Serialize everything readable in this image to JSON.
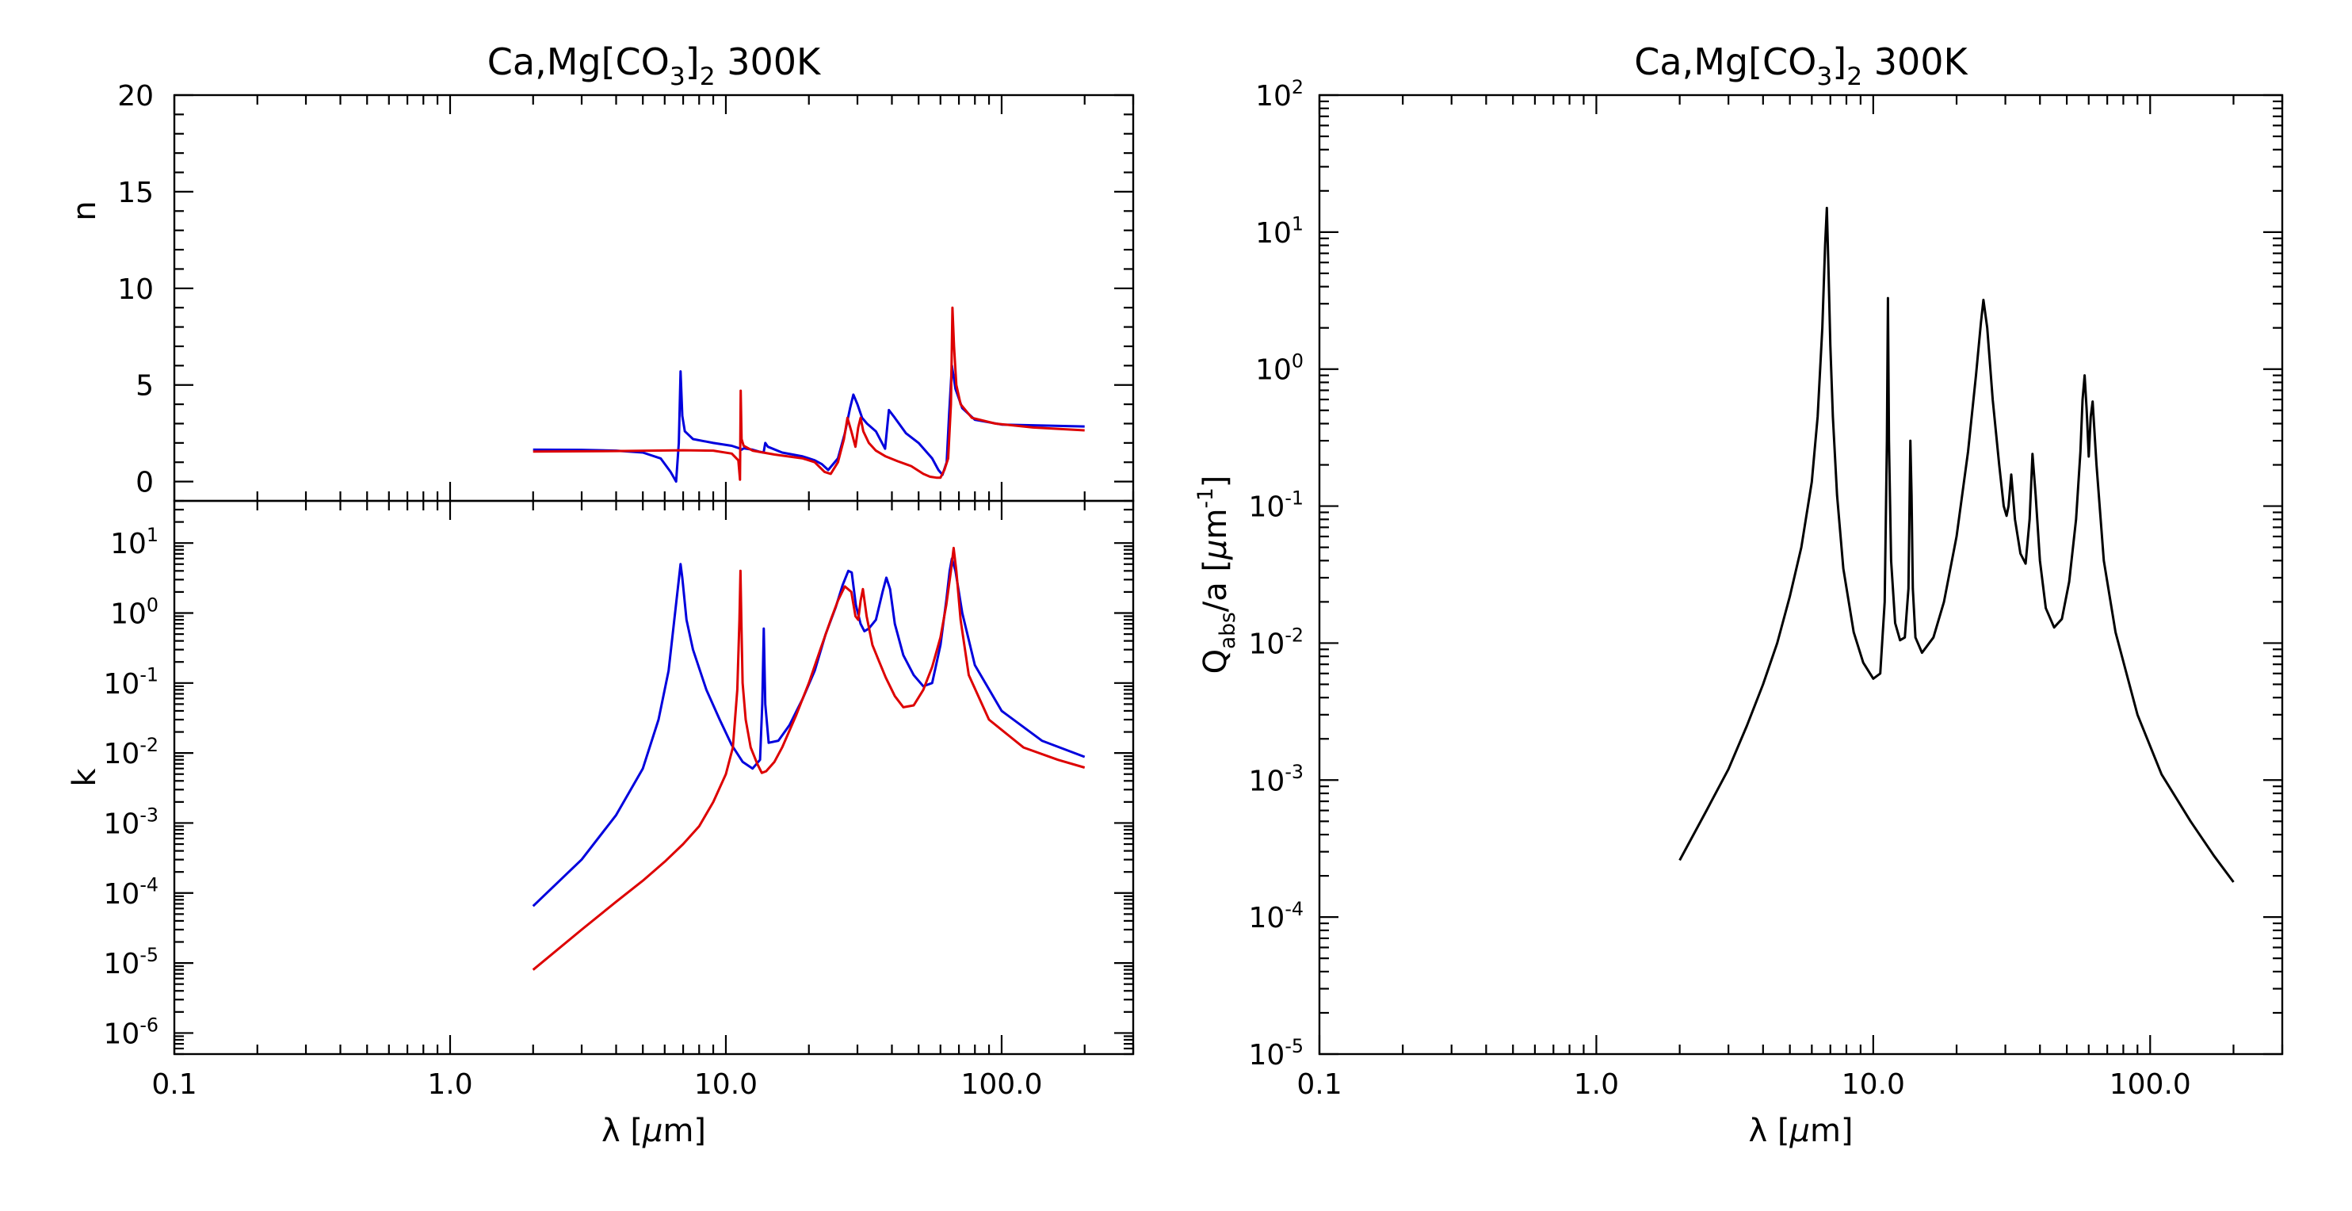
{
  "chart_data": [
    {
      "id": "n_panel",
      "type": "line",
      "title": "Ca,Mg[CO3]2 300K",
      "xlabel": "",
      "ylabel": "n",
      "xscale": "log",
      "xlim": [
        0.1,
        300
      ],
      "ylim": [
        -1,
        20
      ],
      "x_ticks": [
        "0.1",
        "1.0",
        "10.0",
        "100.0"
      ],
      "x_tick_labels_shown": false,
      "y_ticks": [
        "0",
        "5",
        "10",
        "15",
        "20"
      ],
      "series": [
        {
          "color": "#0000dd",
          "x": [
            2,
            3,
            4,
            5,
            5.8,
            6.3,
            6.6,
            6.75,
            6.85,
            6.95,
            7.1,
            7.6,
            9,
            10.5,
            11.2,
            11.4,
            11.6,
            12.5,
            13.2,
            13.7,
            13.9,
            14.2,
            16,
            19,
            21,
            22.3,
            23.5,
            25.5,
            27,
            28.2,
            29,
            30,
            31.2,
            32.5,
            35,
            37.8,
            39,
            41,
            45,
            50,
            56,
            59,
            61,
            63.2,
            64.5,
            66,
            68,
            72,
            80,
            100,
            140,
            200
          ],
          "y": [
            1.65,
            1.64,
            1.6,
            1.5,
            1.2,
            0.5,
            0.0,
            2.0,
            5.7,
            3.4,
            2.6,
            2.2,
            2.0,
            1.85,
            1.72,
            1.65,
            1.72,
            1.65,
            1.55,
            1.5,
            2.0,
            1.8,
            1.5,
            1.3,
            1.1,
            0.9,
            0.6,
            1.2,
            2.5,
            3.8,
            4.5,
            4.0,
            3.3,
            3.0,
            2.6,
            1.7,
            3.7,
            3.3,
            2.5,
            2.0,
            1.2,
            0.6,
            0.35,
            1.0,
            3.5,
            6.0,
            4.8,
            3.8,
            3.2,
            2.95,
            2.9,
            2.85
          ]
        },
        {
          "color": "#dd0000",
          "x": [
            2,
            4,
            7,
            9,
            10.5,
            11.1,
            11.25,
            11.32,
            11.4,
            11.6,
            12.5,
            15,
            19,
            21,
            22.8,
            24,
            25.5,
            26.8,
            27.6,
            28.5,
            29.5,
            30.2,
            30.8,
            31.5,
            33,
            35,
            38,
            42,
            47,
            52,
            55,
            58,
            60,
            62,
            64,
            65.5,
            66.3,
            67.2,
            68.5,
            71,
            78,
            95,
            130,
            200
          ],
          "y": [
            1.55,
            1.58,
            1.62,
            1.6,
            1.45,
            1.1,
            0.1,
            4.7,
            2.2,
            1.85,
            1.6,
            1.4,
            1.2,
            1.0,
            0.5,
            0.4,
            1.0,
            2.2,
            3.3,
            2.6,
            1.8,
            2.8,
            3.3,
            2.6,
            2.0,
            1.6,
            1.3,
            1.05,
            0.8,
            0.4,
            0.25,
            0.2,
            0.2,
            0.6,
            1.2,
            4.0,
            9.0,
            7.0,
            5.0,
            4.0,
            3.3,
            3.0,
            2.8,
            2.65
          ]
        }
      ]
    },
    {
      "id": "k_panel",
      "type": "line",
      "title": "",
      "xlabel": "λ [μm]",
      "ylabel": "k",
      "xscale": "log",
      "yscale": "log",
      "xlim": [
        0.1,
        300
      ],
      "ylim": [
        5e-07,
        40
      ],
      "x_ticks": [
        "0.1",
        "1.0",
        "10.0",
        "100.0"
      ],
      "y_ticks": [
        "10-6",
        "10-5",
        "10-4",
        "10-3",
        "10-2",
        "10-1",
        "100",
        "101"
      ],
      "series": [
        {
          "color": "#0000dd",
          "x": [
            2,
            3,
            4,
            5,
            5.7,
            6.2,
            6.5,
            6.75,
            6.85,
            6.95,
            7.2,
            7.6,
            8.5,
            9.5,
            10.5,
            11.5,
            12.5,
            13.3,
            13.55,
            13.72,
            13.9,
            14.3,
            15.5,
            17,
            19,
            21,
            23,
            25,
            26.5,
            27.8,
            28.6,
            29.6,
            30.8,
            31.8,
            33,
            35,
            37,
            38.2,
            39.4,
            41,
            44,
            48,
            52,
            56,
            60,
            63,
            64.8,
            66,
            68,
            72,
            80,
            100,
            140,
            200
          ],
          "y": [
            6.5e-05,
            0.0003,
            0.0013,
            0.006,
            0.03,
            0.15,
            0.8,
            3.0,
            5.0,
            3.2,
            0.8,
            0.3,
            0.08,
            0.03,
            0.013,
            0.0075,
            0.006,
            0.008,
            0.05,
            0.6,
            0.05,
            0.014,
            0.015,
            0.025,
            0.06,
            0.15,
            0.5,
            1.2,
            2.5,
            4.0,
            3.8,
            1.3,
            0.7,
            0.55,
            0.6,
            0.8,
            2.0,
            3.2,
            2.2,
            0.7,
            0.25,
            0.13,
            0.09,
            0.1,
            0.35,
            1.5,
            4.0,
            6.0,
            4.0,
            1.0,
            0.18,
            0.04,
            0.015,
            0.0088
          ]
        },
        {
          "color": "#dd0000",
          "x": [
            2,
            3,
            4,
            5,
            6,
            7,
            8,
            9,
            10,
            10.6,
            11.0,
            11.2,
            11.3,
            11.38,
            11.5,
            11.8,
            12.3,
            13.0,
            13.5,
            14,
            15,
            16,
            18,
            20,
            22,
            24,
            25.5,
            27,
            28.5,
            29.5,
            30.2,
            30.8,
            31.4,
            32.4,
            34,
            36,
            38,
            41,
            44,
            48,
            52,
            56,
            60,
            63,
            65.5,
            67,
            68.5,
            71,
            76,
            90,
            120,
            160,
            200
          ],
          "y": [
            8e-06,
            3e-05,
            7.5e-05,
            0.00015,
            0.00028,
            0.0005,
            0.0009,
            0.002,
            0.005,
            0.012,
            0.08,
            0.8,
            4.0,
            0.8,
            0.1,
            0.03,
            0.012,
            0.007,
            0.0052,
            0.0055,
            0.0075,
            0.012,
            0.035,
            0.1,
            0.3,
            0.8,
            1.5,
            2.4,
            2.0,
            0.9,
            0.8,
            1.5,
            2.2,
            0.9,
            0.35,
            0.2,
            0.12,
            0.065,
            0.045,
            0.048,
            0.08,
            0.17,
            0.45,
            1.3,
            4.0,
            8.5,
            4.0,
            0.8,
            0.13,
            0.03,
            0.012,
            0.008,
            0.0062
          ]
        }
      ]
    },
    {
      "id": "q_panel",
      "type": "line",
      "title": "Ca,Mg[CO3]2 300K",
      "xlabel": "λ [μm]",
      "ylabel": "Qabs/a [μm-1]",
      "xscale": "log",
      "yscale": "log",
      "xlim": [
        0.1,
        300
      ],
      "ylim": [
        1e-05,
        100
      ],
      "x_ticks": [
        "0.1",
        "1.0",
        "10.0",
        "100.0"
      ],
      "y_ticks": [
        "10-5",
        "10-4",
        "10-3",
        "10-2",
        "10-1",
        "100",
        "101",
        "102"
      ],
      "series": [
        {
          "color": "#000000",
          "x": [
            2,
            2.5,
            3,
            3.5,
            4,
            4.5,
            5,
            5.5,
            6,
            6.3,
            6.55,
            6.7,
            6.8,
            6.9,
            7.0,
            7.15,
            7.4,
            7.8,
            8.5,
            9.2,
            10,
            10.6,
            11.0,
            11.2,
            11.3,
            11.4,
            11.6,
            12.0,
            12.5,
            13.0,
            13.4,
            13.62,
            13.75,
            13.9,
            14.2,
            15.0,
            16.5,
            18,
            20,
            22,
            23.5,
            24.5,
            25,
            25.8,
            27,
            28.5,
            29.6,
            30.3,
            30.8,
            31.5,
            32.5,
            34,
            35.5,
            36.7,
            37.6,
            38.6,
            40,
            42,
            45,
            48,
            51,
            54,
            56,
            57,
            58,
            59,
            60,
            61,
            62,
            64,
            68,
            75,
            90,
            110,
            140,
            170,
            200
          ],
          "y": [
            0.00026,
            0.0006,
            0.0012,
            0.0025,
            0.005,
            0.01,
            0.022,
            0.05,
            0.15,
            0.45,
            2.0,
            8.0,
            15.0,
            5.0,
            1.5,
            0.45,
            0.12,
            0.035,
            0.012,
            0.0072,
            0.0055,
            0.006,
            0.02,
            0.3,
            3.3,
            0.3,
            0.04,
            0.014,
            0.0105,
            0.011,
            0.025,
            0.3,
            0.12,
            0.025,
            0.011,
            0.0085,
            0.011,
            0.02,
            0.06,
            0.25,
            0.9,
            2.2,
            3.2,
            2.0,
            0.6,
            0.2,
            0.1,
            0.085,
            0.1,
            0.17,
            0.08,
            0.045,
            0.038,
            0.08,
            0.24,
            0.12,
            0.04,
            0.018,
            0.013,
            0.015,
            0.028,
            0.08,
            0.25,
            0.6,
            0.9,
            0.5,
            0.23,
            0.45,
            0.58,
            0.2,
            0.04,
            0.012,
            0.003,
            0.0011,
            0.0005,
            0.00028,
            0.00018
          ]
        }
      ]
    }
  ]
}
